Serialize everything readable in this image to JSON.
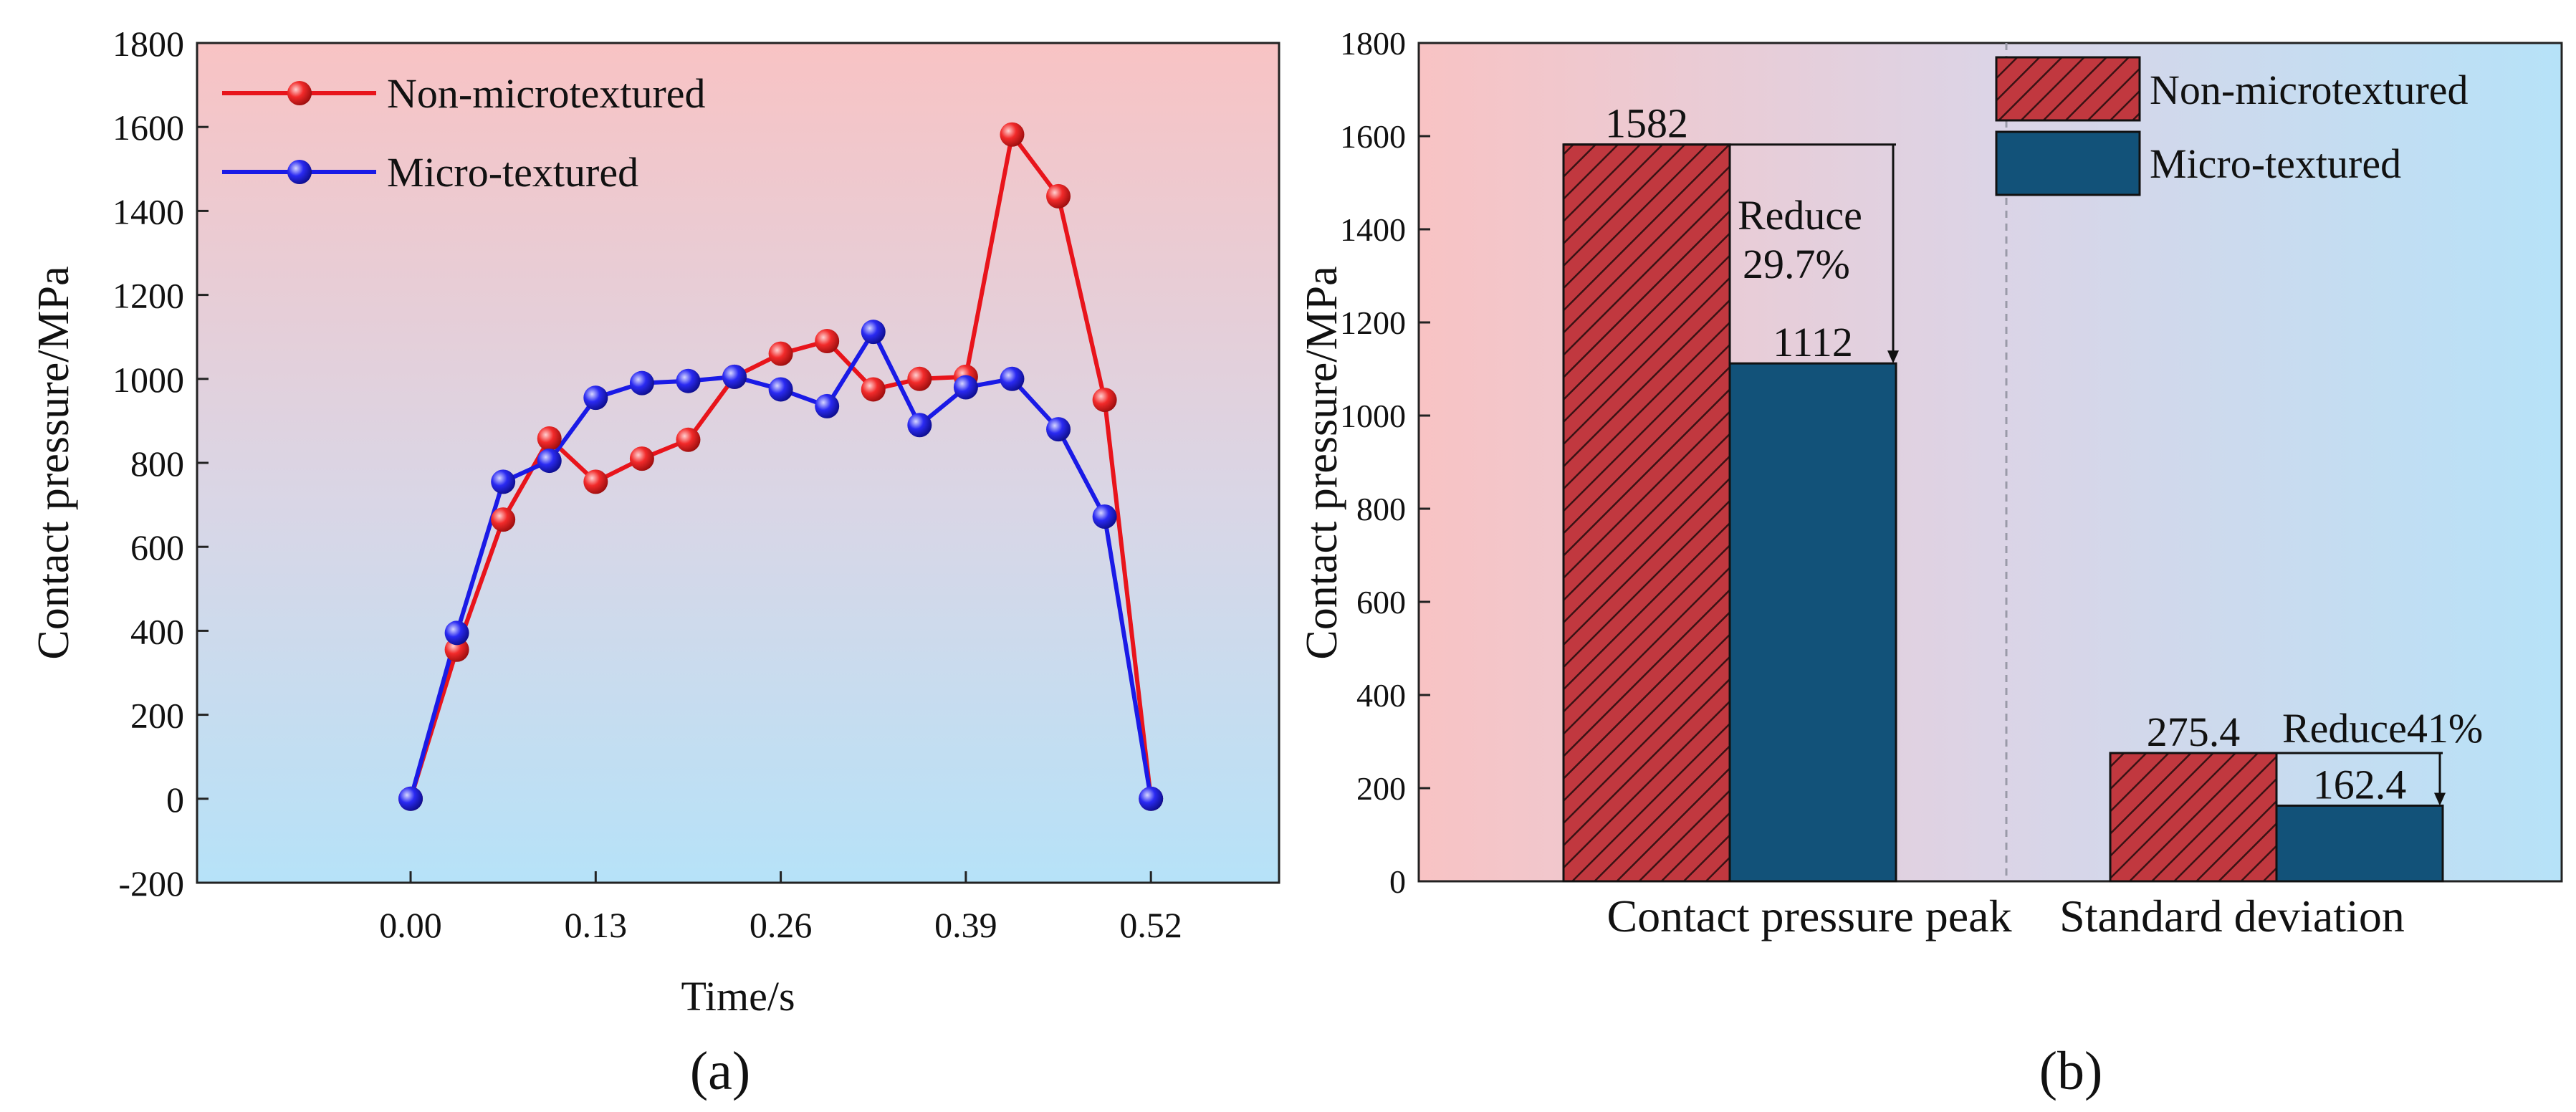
{
  "chart_data": [
    {
      "type": "line",
      "panel_label": "(a)",
      "title": "",
      "xlabel": "Time/s",
      "ylabel": "Contact pressure/MPa",
      "xlim": [
        -0.15,
        0.61
      ],
      "ylim": [
        -200,
        1800
      ],
      "x_ticks": [
        "0.00",
        "0.13",
        "0.26",
        "0.39",
        "0.52"
      ],
      "y_ticks": [
        "-200",
        "0",
        "200",
        "400",
        "600",
        "800",
        "1000",
        "1200",
        "1400",
        "1600",
        "1800"
      ],
      "legend_position": "top-left",
      "x": [
        0,
        0.0325,
        0.065,
        0.0975,
        0.13,
        0.1625,
        0.195,
        0.2275,
        0.26,
        0.2925,
        0.325,
        0.3575,
        0.39,
        0.4225,
        0.455,
        0.4875,
        0.52
      ],
      "series": [
        {
          "name": "Non-microtextured",
          "color": "#e8141b",
          "values": [
            0,
            355,
            665,
            858,
            755,
            810,
            855,
            1005,
            1060,
            1090,
            975,
            1000,
            1005,
            1582,
            1435,
            950,
            0
          ]
        },
        {
          "name": "Micro-textured",
          "color": "#1a1ae6",
          "values": [
            0,
            395,
            755,
            805,
            955,
            990,
            995,
            1005,
            975,
            935,
            1112,
            890,
            980,
            1000,
            880,
            672,
            0
          ]
        }
      ]
    },
    {
      "type": "bar",
      "panel_label": "(b)",
      "title": "",
      "xlabel": "",
      "ylabel": "Contact pressure/MPa",
      "ylim": [
        0,
        1800
      ],
      "y_ticks": [
        "0",
        "200",
        "400",
        "600",
        "800",
        "1000",
        "1200",
        "1400",
        "1600",
        "1800"
      ],
      "categories": [
        "Contact pressure peak",
        "Standard deviation"
      ],
      "legend_position": "top-right",
      "series": [
        {
          "name": "Non-microtextured",
          "color": "#c1383f",
          "values": [
            1582,
            275.4
          ],
          "labels": [
            "1582",
            "275.4"
          ]
        },
        {
          "name": "Micro-textured",
          "color": "#125279",
          "values": [
            1112,
            162.4
          ],
          "labels": [
            "1112",
            "162.4"
          ]
        }
      ],
      "annotations": [
        {
          "text_line1": "Reduce",
          "text_line2": "29.7%"
        },
        {
          "text_line1": "Reduce41%"
        }
      ]
    }
  ]
}
